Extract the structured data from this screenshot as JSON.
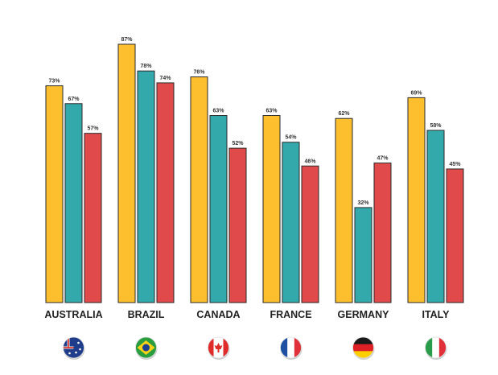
{
  "chart_data": {
    "type": "bar",
    "categories": [
      "AUSTRALIA",
      "BRAZIL",
      "CANADA",
      "FRANCE",
      "GERMANY",
      "ITALY"
    ],
    "series": [
      {
        "values": [
          73,
          87,
          76,
          63,
          62,
          69
        ],
        "color": "#FDBF2D"
      },
      {
        "values": [
          67,
          78,
          63,
          54,
          32,
          58
        ],
        "color": "#33A9AC"
      },
      {
        "values": [
          57,
          74,
          52,
          46,
          47,
          45
        ],
        "color": "#E04A4A"
      }
    ],
    "value_suffix": "%",
    "ylim": [
      0,
      100
    ],
    "grid": false,
    "title": "",
    "xlabel": "",
    "ylabel": "",
    "category_icons": [
      "australia-flag-icon",
      "brazil-flag-icon",
      "canada-flag-icon",
      "france-flag-icon",
      "germany-flag-icon",
      "italy-flag-icon"
    ]
  }
}
